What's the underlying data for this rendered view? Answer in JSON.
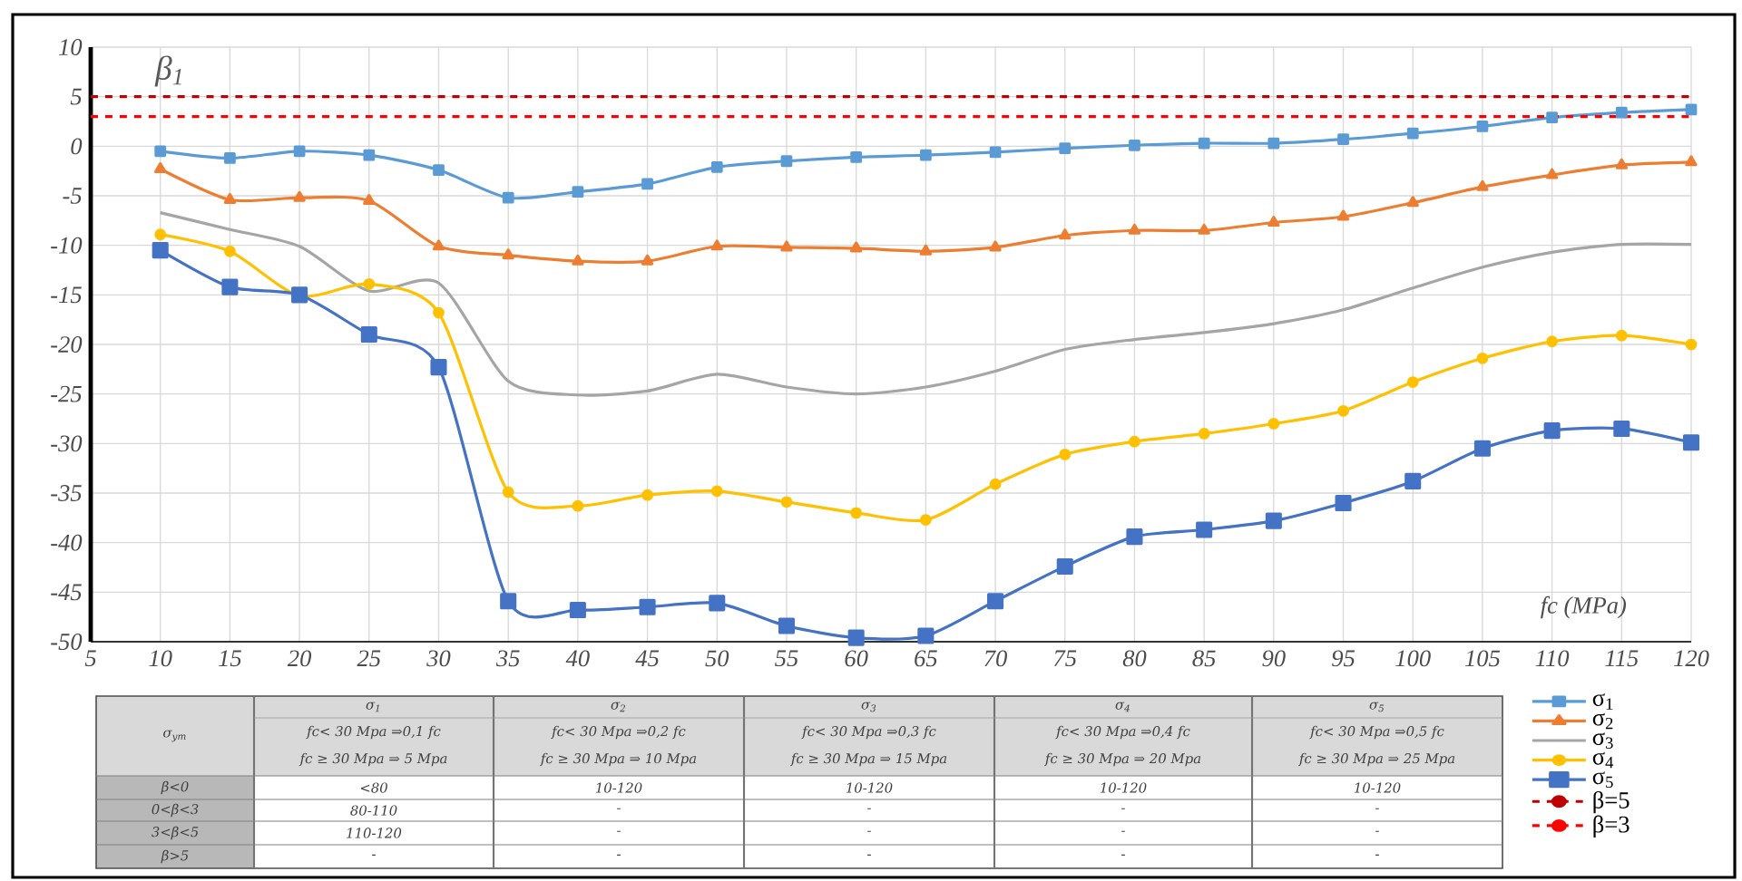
{
  "chart_data": {
    "type": "line",
    "ylabel": "β$_{1}$",
    "xlabel": "fc (MPa)",
    "xlim": [
      5,
      120
    ],
    "xticks": [
      5,
      10,
      15,
      20,
      25,
      30,
      35,
      40,
      45,
      50,
      55,
      60,
      65,
      70,
      75,
      80,
      85,
      90,
      95,
      100,
      105,
      110,
      115,
      120
    ],
    "ylim": [
      -50,
      10
    ],
    "yticks": [
      -50,
      -45,
      -40,
      -35,
      -30,
      -25,
      -20,
      -15,
      -10,
      -5,
      0,
      5,
      10
    ],
    "grid": true,
    "legend": "bottom right",
    "line_style": "solid",
    "x": [
      10,
      15,
      20,
      25,
      30,
      35,
      40,
      45,
      50,
      55,
      60,
      65,
      70,
      75,
      80,
      85,
      90,
      95,
      100,
      105,
      110,
      115,
      120
    ],
    "series": [
      {
        "name": "σ$_{1}$",
        "color": "#5b9bd5",
        "marker": "square",
        "values": [
          -0.5,
          -1.2,
          -0.5,
          -0.9,
          -2.4,
          -5.2,
          -4.6,
          -3.8,
          -2.1,
          -1.5,
          -1.1,
          -0.9,
          -0.6,
          -0.2,
          0.1,
          0.3,
          0.3,
          0.7,
          1.3,
          2.0,
          2.9,
          3.4,
          3.7
        ]
      },
      {
        "name": "σ$_{2}$",
        "color": "#ed7d31",
        "marker": "triangle",
        "values": [
          -2.3,
          -5.4,
          -5.2,
          -5.5,
          -10.1,
          -11.0,
          -11.6,
          -11.6,
          -10.1,
          -10.2,
          -10.3,
          -10.6,
          -10.2,
          -9.0,
          -8.5,
          -8.5,
          -7.7,
          -7.1,
          -5.7,
          -4.1,
          -2.9,
          -1.9,
          -1.6
        ]
      },
      {
        "name": "σ$_{3}$",
        "color": "#a5a5a5",
        "marker": "none",
        "values": [
          -6.7,
          -8.4,
          -10.1,
          -14.6,
          -13.8,
          -23.7,
          -25.1,
          -24.7,
          -23.0,
          -24.3,
          -25.0,
          -24.3,
          -22.7,
          -20.5,
          -19.5,
          -18.8,
          -17.9,
          -16.5,
          -14.3,
          -12.2,
          -10.7,
          -9.9,
          -9.9
        ]
      },
      {
        "name": "σ$_{4}$",
        "color": "#ffc000",
        "marker": "circle",
        "values": [
          -8.9,
          -10.6,
          -15.1,
          -13.9,
          -16.8,
          -34.9,
          -36.3,
          -35.2,
          -34.8,
          -35.9,
          -37.0,
          -37.7,
          -34.1,
          -31.1,
          -29.8,
          -29.0,
          -28.0,
          -26.7,
          -23.8,
          -21.4,
          -19.7,
          -19.1,
          -20.0
        ]
      },
      {
        "name": "σ$_{5}$",
        "color": "#4472c4",
        "marker": "square",
        "values": [
          -10.5,
          -14.2,
          -15.0,
          -19.0,
          -22.3,
          -45.9,
          -46.8,
          -46.5,
          -46.1,
          -48.4,
          -49.6,
          -49.4,
          -45.9,
          -42.4,
          -39.4,
          -38.7,
          -37.8,
          -36.0,
          -33.8,
          -30.5,
          -28.7,
          -28.5,
          -29.9
        ]
      }
    ],
    "ref_lines": [
      {
        "axis": "y",
        "value": 5,
        "label": "β=5",
        "color": "#c00000",
        "line_style": "dashed"
      },
      {
        "axis": "y",
        "value": 3,
        "label": "β=3",
        "color": "#ff0000",
        "line_style": "dashed"
      }
    ],
    "annotations": [
      "σ$_{ym}$",
      "σ$_{1}$",
      "σ$_{2}$",
      "σ$_{3}$",
      "σ$_{4}$",
      "σ$_{5}$",
      "fc< 30 Mpa ⇒0,1 fc",
      "fc ≥ 30 Mpa ⇒ 5 Mpa",
      "fc< 30 Mpa ⇒0,2 fc",
      "fc ≥ 30 Mpa ⇒ 10 Mpa",
      "fc< 30 Mpa ⇒0,3 fc",
      "fc ≥ 30 Mpa ⇒ 15 Mpa",
      "fc< 30 Mpa ⇒0,4 fc",
      "fc ≥ 30 Mpa ⇒ 20 Mpa",
      "fc< 30 Mpa ⇒0,5 fc",
      "fc ≥ 30 Mpa ⇒ 25 Mpa",
      "β<0",
      "<80",
      "10-120",
      "10-120",
      "10-120",
      "10-120",
      "0<β<3",
      "80-110",
      "-",
      "-",
      "-",
      "-",
      "3<β<5",
      "110-120",
      "-",
      "-",
      "-",
      "-",
      "β>5",
      "-",
      "-",
      "-",
      "-",
      "-"
    ]
  }
}
